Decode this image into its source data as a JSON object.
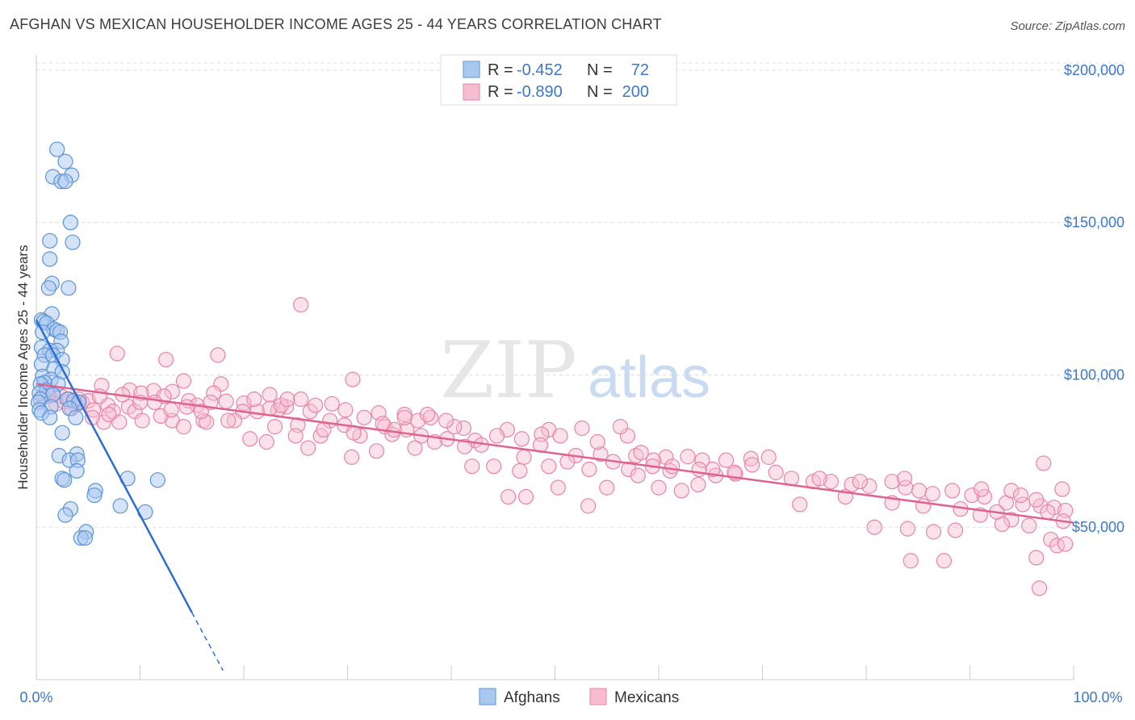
{
  "title": "AFGHAN VS MEXICAN HOUSEHOLDER INCOME AGES 25 - 44 YEARS CORRELATION CHART",
  "source": "Source: ZipAtlas.com",
  "watermark": {
    "zip": "ZIP",
    "atlas": "atlas"
  },
  "colors": {
    "afghan_fill": "#a9c8f0",
    "afghan_stroke": "#5b93d9",
    "afghan_line": "#2c6fd1",
    "mexican_fill": "#f6bcd0",
    "mexican_stroke": "#e784a8",
    "mexican_line": "#e0628f",
    "axis_label": "#3b78c9",
    "grid": "#dddddd"
  },
  "legend": {
    "rows": [
      {
        "r_label": "R =",
        "r_value": "-0.452",
        "n_label": "N =",
        "n_value": "72"
      },
      {
        "r_label": "R =",
        "r_value": "-0.890",
        "n_label": "N =",
        "n_value": "200"
      }
    ]
  },
  "bottom_legend": [
    "Afghans",
    "Mexicans"
  ],
  "chart_data": {
    "type": "scatter",
    "xlabel": "",
    "ylabel": "Householder Income Ages 25 - 44 years",
    "x_tick_labels": [
      "0.0%",
      "100.0%"
    ],
    "y_tick_labels": [
      "$50,000",
      "$100,000",
      "$150,000",
      "$200,000"
    ],
    "y_ticks": [
      50000,
      100000,
      150000,
      200000
    ],
    "xlim": [
      0,
      100
    ],
    "ylim": [
      0,
      205000
    ],
    "series": [
      {
        "name": "Afghans",
        "regression": {
          "x_start": 0.0,
          "y_start": 118000,
          "x_solid_end": 15.0,
          "y_solid_end": 22000,
          "x_dash_end": 18.0,
          "y_dash_end": 3000
        },
        "points": [
          [
            2.0,
            174000
          ],
          [
            1.6,
            165000
          ],
          [
            2.8,
            170000
          ],
          [
            3.4,
            165500
          ],
          [
            2.4,
            163500
          ],
          [
            2.8,
            163500
          ],
          [
            3.3,
            150000
          ],
          [
            1.3,
            144000
          ],
          [
            3.5,
            143500
          ],
          [
            1.3,
            138000
          ],
          [
            1.5,
            130000
          ],
          [
            1.2,
            128500
          ],
          [
            3.1,
            128500
          ],
          [
            1.5,
            120000
          ],
          [
            0.5,
            118000
          ],
          [
            0.7,
            117500
          ],
          [
            1.0,
            117000
          ],
          [
            1.7,
            115000
          ],
          [
            2.0,
            114500
          ],
          [
            0.6,
            114000
          ],
          [
            2.3,
            114000
          ],
          [
            2.4,
            111000
          ],
          [
            0.5,
            109000
          ],
          [
            1.3,
            108000
          ],
          [
            2.0,
            108000
          ],
          [
            0.8,
            106500
          ],
          [
            1.6,
            106500
          ],
          [
            2.5,
            105000
          ],
          [
            0.5,
            103500
          ],
          [
            1.7,
            102000
          ],
          [
            2.5,
            101000
          ],
          [
            0.6,
            99500
          ],
          [
            1.4,
            98500
          ],
          [
            0.8,
            97500
          ],
          [
            2.1,
            97000
          ],
          [
            0.4,
            97000
          ],
          [
            1.0,
            95000
          ],
          [
            0.3,
            94000
          ],
          [
            1.6,
            93500
          ],
          [
            0.4,
            92000
          ],
          [
            0.2,
            91000
          ],
          [
            3.0,
            92000
          ],
          [
            3.6,
            91500
          ],
          [
            4.1,
            91000
          ],
          [
            1.4,
            89500
          ],
          [
            3.2,
            89000
          ],
          [
            0.3,
            88500
          ],
          [
            0.5,
            87500
          ],
          [
            1.3,
            86000
          ],
          [
            3.8,
            86000
          ],
          [
            2.5,
            81000
          ],
          [
            3.9,
            74000
          ],
          [
            2.2,
            73500
          ],
          [
            3.2,
            72000
          ],
          [
            4.0,
            72000
          ],
          [
            3.9,
            68500
          ],
          [
            2.5,
            66000
          ],
          [
            2.7,
            65500
          ],
          [
            8.8,
            66000
          ],
          [
            11.7,
            65500
          ],
          [
            5.7,
            62000
          ],
          [
            5.6,
            60500
          ],
          [
            8.1,
            57000
          ],
          [
            3.3,
            56000
          ],
          [
            10.5,
            55000
          ],
          [
            2.8,
            54000
          ],
          [
            4.8,
            48500
          ],
          [
            4.3,
            46500
          ],
          [
            4.7,
            46500
          ]
        ]
      },
      {
        "name": "Mexicans",
        "regression": {
          "x_start": 0.0,
          "y_start": 97000,
          "x_end": 100.0,
          "y_end": 51500
        },
        "points": [
          [
            25.5,
            123000
          ],
          [
            7.8,
            107000
          ],
          [
            12.5,
            105000
          ],
          [
            17.5,
            106500
          ],
          [
            30.5,
            98500
          ],
          [
            14.2,
            98000
          ],
          [
            17.8,
            97000
          ],
          [
            6.3,
            96500
          ],
          [
            9.0,
            95000
          ],
          [
            11.3,
            94800
          ],
          [
            13.1,
            94500
          ],
          [
            10.1,
            94000
          ],
          [
            22.5,
            93500
          ],
          [
            4.4,
            91000
          ],
          [
            2.7,
            91200
          ],
          [
            5.0,
            91500
          ],
          [
            14.7,
            91500
          ],
          [
            18.3,
            91300
          ],
          [
            20.0,
            90700
          ],
          [
            3.8,
            90000
          ],
          [
            6.9,
            90000
          ],
          [
            15.5,
            90000
          ],
          [
            8.9,
            89500
          ],
          [
            24.1,
            89500
          ],
          [
            5.5,
            88500
          ],
          [
            7.4,
            88000
          ],
          [
            9.5,
            88000
          ],
          [
            19.9,
            88000
          ],
          [
            21.3,
            88000
          ],
          [
            23.3,
            88500
          ],
          [
            26.4,
            88000
          ],
          [
            33.0,
            87500
          ],
          [
            35.5,
            87000
          ],
          [
            36.8,
            85000
          ],
          [
            28.3,
            85000
          ],
          [
            16.1,
            85000
          ],
          [
            13.1,
            85000
          ],
          [
            19.1,
            85000
          ],
          [
            8.0,
            84500
          ],
          [
            6.5,
            84500
          ],
          [
            25.2,
            83500
          ],
          [
            29.7,
            83500
          ],
          [
            23.0,
            83000
          ],
          [
            33.6,
            83000
          ],
          [
            41.2,
            82500
          ],
          [
            45.4,
            82000
          ],
          [
            49.4,
            82000
          ],
          [
            48.7,
            80500
          ],
          [
            34.3,
            80500
          ],
          [
            31.2,
            80000
          ],
          [
            37.1,
            80000
          ],
          [
            39.6,
            79000
          ],
          [
            42.3,
            78500
          ],
          [
            42.9,
            77000
          ],
          [
            38.4,
            78000
          ],
          [
            41.3,
            76500
          ],
          [
            36.5,
            76000
          ],
          [
            32.8,
            75000
          ],
          [
            30.4,
            73000
          ],
          [
            47.0,
            73000
          ],
          [
            52.0,
            73500
          ],
          [
            54.4,
            74000
          ],
          [
            57.8,
            73500
          ],
          [
            60.7,
            73000
          ],
          [
            62.8,
            73200
          ],
          [
            64.2,
            72000
          ],
          [
            66.5,
            72000
          ],
          [
            68.9,
            72500
          ],
          [
            70.6,
            73000
          ],
          [
            59.5,
            72000
          ],
          [
            55.6,
            71500
          ],
          [
            51.2,
            71500
          ],
          [
            49.4,
            70000
          ],
          [
            44.1,
            70000
          ],
          [
            42.0,
            70000
          ],
          [
            46.6,
            68500
          ],
          [
            53.3,
            69000
          ],
          [
            57.1,
            69000
          ],
          [
            61.1,
            68500
          ],
          [
            65.5,
            67000
          ],
          [
            67.4,
            67500
          ],
          [
            72.8,
            66000
          ],
          [
            74.9,
            65000
          ],
          [
            76.6,
            65000
          ],
          [
            78.6,
            64000
          ],
          [
            80.3,
            63500
          ],
          [
            82.5,
            65000
          ],
          [
            83.8,
            63000
          ],
          [
            85.1,
            62000
          ],
          [
            86.4,
            61000
          ],
          [
            88.3,
            62000
          ],
          [
            90.2,
            60500
          ],
          [
            91.4,
            60000
          ],
          [
            93.5,
            58000
          ],
          [
            95.1,
            57500
          ],
          [
            96.8,
            57000
          ],
          [
            98.1,
            56500
          ],
          [
            99.2,
            55500
          ],
          [
            97.5,
            55000
          ],
          [
            94.0,
            52500
          ],
          [
            95.7,
            50500
          ],
          [
            93.1,
            51000
          ],
          [
            88.6,
            49000
          ],
          [
            86.5,
            48500
          ],
          [
            84.0,
            49500
          ],
          [
            80.8,
            50000
          ],
          [
            97.8,
            46000
          ],
          [
            98.4,
            44000
          ],
          [
            99.2,
            44500
          ],
          [
            96.4,
            40000
          ],
          [
            87.5,
            39000
          ],
          [
            84.3,
            39000
          ],
          [
            96.7,
            30000
          ],
          [
            97.1,
            71000
          ],
          [
            94.0,
            62000
          ],
          [
            91.1,
            62500
          ],
          [
            83.7,
            66000
          ],
          [
            79.4,
            65000
          ],
          [
            75.5,
            66000
          ],
          [
            71.3,
            68000
          ],
          [
            69.0,
            70500
          ],
          [
            67.3,
            68000
          ],
          [
            65.2,
            69000
          ],
          [
            63.9,
            69000
          ],
          [
            61.3,
            70000
          ],
          [
            59.4,
            70000
          ],
          [
            58.3,
            74500
          ],
          [
            57.0,
            80000
          ],
          [
            56.3,
            83000
          ],
          [
            54.1,
            78000
          ],
          [
            52.6,
            82500
          ],
          [
            50.5,
            80000
          ],
          [
            48.6,
            77000
          ],
          [
            46.8,
            79000
          ],
          [
            44.4,
            80000
          ],
          [
            40.3,
            83000
          ],
          [
            39.5,
            85000
          ],
          [
            38.0,
            86000
          ],
          [
            35.7,
            82000
          ],
          [
            34.5,
            82000
          ],
          [
            30.6,
            81000
          ],
          [
            27.4,
            80000
          ],
          [
            26.2,
            76000
          ],
          [
            31.6,
            86000
          ],
          [
            33.4,
            84000
          ],
          [
            35.5,
            86000
          ],
          [
            37.7,
            87000
          ],
          [
            27.7,
            82000
          ],
          [
            25.0,
            80000
          ],
          [
            22.2,
            78000
          ],
          [
            20.6,
            79000
          ],
          [
            18.5,
            85000
          ],
          [
            16.4,
            84500
          ],
          [
            14.2,
            83000
          ],
          [
            12.0,
            86500
          ],
          [
            10.2,
            85000
          ],
          [
            12.3,
            93000
          ],
          [
            14.5,
            89500
          ],
          [
            15.9,
            88000
          ],
          [
            17.1,
            94000
          ],
          [
            16.8,
            91000
          ],
          [
            11.4,
            91000
          ],
          [
            7.0,
            87000
          ],
          [
            5.4,
            86000
          ],
          [
            2.4,
            93000
          ],
          [
            3.2,
            92000
          ],
          [
            4.1,
            92000
          ],
          [
            1.6,
            94000
          ],
          [
            1.2,
            93000
          ],
          [
            0.6,
            93000
          ],
          [
            1.9,
            90500
          ],
          [
            3.4,
            89000
          ],
          [
            6.1,
            93000
          ],
          [
            8.3,
            93500
          ],
          [
            10.0,
            91000
          ],
          [
            13.0,
            88500
          ],
          [
            21.0,
            92000
          ],
          [
            22.5,
            89000
          ],
          [
            23.6,
            90000
          ],
          [
            24.2,
            92000
          ],
          [
            25.5,
            92000
          ],
          [
            26.9,
            90000
          ],
          [
            28.5,
            90500
          ],
          [
            29.8,
            88500
          ],
          [
            45.5,
            60000
          ],
          [
            47.2,
            60000
          ],
          [
            50.3,
            63000
          ],
          [
            53.2,
            57000
          ],
          [
            55.0,
            63000
          ],
          [
            58.0,
            67000
          ],
          [
            60.0,
            63000
          ],
          [
            62.2,
            62000
          ],
          [
            63.8,
            64000
          ],
          [
            73.6,
            57500
          ],
          [
            78.0,
            60000
          ],
          [
            82.5,
            58000
          ],
          [
            85.5,
            57000
          ],
          [
            89.1,
            56000
          ],
          [
            91.0,
            54000
          ],
          [
            92.6,
            55000
          ],
          [
            94.9,
            60500
          ],
          [
            96.4,
            59000
          ],
          [
            98.9,
            62500
          ],
          [
            99.0,
            52000
          ]
        ]
      }
    ]
  }
}
